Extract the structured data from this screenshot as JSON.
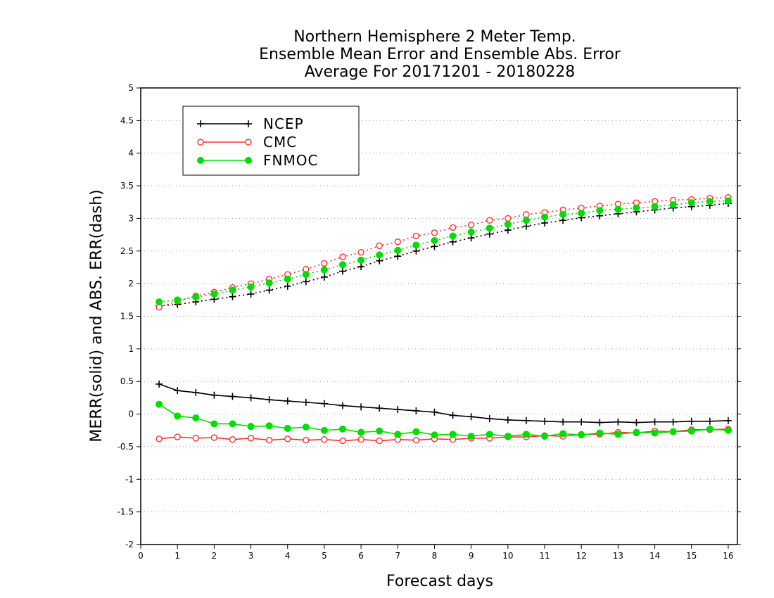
{
  "chart_data": {
    "type": "line",
    "title": [
      "Northern Hemisphere 2 Meter Temp.",
      "Ensemble Mean Error and Ensemble Abs. Error",
      "Average For 20171201 - 20180228"
    ],
    "xlabel": "Forecast days",
    "ylabel": "MERR(solid) and ABS. ERR(dash)",
    "xlim": [
      0,
      16.25
    ],
    "ylim": [
      -2,
      5
    ],
    "x_ticks": [
      0,
      1,
      2,
      3,
      4,
      5,
      6,
      7,
      8,
      9,
      10,
      11,
      12,
      13,
      14,
      15,
      16
    ],
    "y_ticks": [
      -2,
      -1.5,
      -1,
      -0.5,
      0,
      0.5,
      1,
      1.5,
      2,
      2.5,
      3,
      3.5,
      4,
      4.5,
      5
    ],
    "y_tick_labels": [
      "-2",
      "-1.5",
      "-1",
      "-0.5",
      "0",
      "0.5",
      "1",
      "1.5",
      "2",
      "2.5",
      "3",
      "3.5",
      "4",
      "4.5",
      "5"
    ],
    "grid": "horizontal dotted",
    "legend_position": "top-left",
    "x": [
      0.5,
      1,
      1.5,
      2,
      2.5,
      3,
      3.5,
      4,
      4.5,
      5,
      5.5,
      6,
      6.5,
      7,
      7.5,
      8,
      8.5,
      9,
      9.5,
      10,
      10.5,
      11,
      11.5,
      12,
      12.5,
      13,
      13.5,
      14,
      14.5,
      15,
      15.5,
      16
    ],
    "series": [
      {
        "name": "NCEP",
        "color": "#000000",
        "marker": "plus",
        "mean_error": [
          0.46,
          0.36,
          0.33,
          0.29,
          0.27,
          0.25,
          0.22,
          0.2,
          0.18,
          0.16,
          0.13,
          0.11,
          0.09,
          0.07,
          0.05,
          0.03,
          -0.02,
          -0.04,
          -0.07,
          -0.09,
          -0.1,
          -0.11,
          -0.12,
          -0.12,
          -0.13,
          -0.12,
          -0.13,
          -0.12,
          -0.12,
          -0.11,
          -0.11,
          -0.1
        ],
        "abs_error": [
          1.66,
          1.68,
          1.72,
          1.76,
          1.8,
          1.84,
          1.9,
          1.96,
          2.03,
          2.1,
          2.19,
          2.26,
          2.35,
          2.42,
          2.5,
          2.57,
          2.64,
          2.7,
          2.76,
          2.82,
          2.88,
          2.93,
          2.97,
          3.01,
          3.04,
          3.07,
          3.1,
          3.13,
          3.16,
          3.18,
          3.2,
          3.23
        ]
      },
      {
        "name": "CMC",
        "color": "#ff3030",
        "marker": "open-circle",
        "mean_error": [
          -0.38,
          -0.35,
          -0.37,
          -0.36,
          -0.39,
          -0.37,
          -0.4,
          -0.38,
          -0.4,
          -0.39,
          -0.41,
          -0.39,
          -0.41,
          -0.39,
          -0.4,
          -0.38,
          -0.39,
          -0.37,
          -0.37,
          -0.35,
          -0.35,
          -0.33,
          -0.34,
          -0.31,
          -0.31,
          -0.28,
          -0.29,
          -0.26,
          -0.27,
          -0.24,
          -0.24,
          -0.23
        ],
        "abs_error": [
          1.64,
          1.73,
          1.81,
          1.87,
          1.94,
          2.0,
          2.07,
          2.14,
          2.22,
          2.31,
          2.41,
          2.48,
          2.58,
          2.64,
          2.73,
          2.78,
          2.86,
          2.9,
          2.97,
          3.0,
          3.06,
          3.09,
          3.13,
          3.16,
          3.19,
          3.22,
          3.24,
          3.26,
          3.28,
          3.29,
          3.31,
          3.32
        ]
      },
      {
        "name": "FNMOC",
        "color": "#00dd00",
        "marker": "filled-circle",
        "mean_error": [
          0.15,
          -0.03,
          -0.06,
          -0.15,
          -0.15,
          -0.19,
          -0.18,
          -0.22,
          -0.2,
          -0.25,
          -0.23,
          -0.28,
          -0.26,
          -0.31,
          -0.27,
          -0.32,
          -0.31,
          -0.34,
          -0.31,
          -0.34,
          -0.31,
          -0.34,
          -0.3,
          -0.32,
          -0.29,
          -0.31,
          -0.28,
          -0.29,
          -0.27,
          -0.26,
          -0.23,
          -0.25
        ],
        "abs_error": [
          1.72,
          1.75,
          1.79,
          1.84,
          1.9,
          1.95,
          2.01,
          2.07,
          2.14,
          2.21,
          2.29,
          2.36,
          2.44,
          2.51,
          2.59,
          2.66,
          2.73,
          2.79,
          2.85,
          2.91,
          2.97,
          3.02,
          3.06,
          3.08,
          3.12,
          3.14,
          3.16,
          3.18,
          3.21,
          3.24,
          3.26,
          3.27
        ]
      }
    ]
  }
}
